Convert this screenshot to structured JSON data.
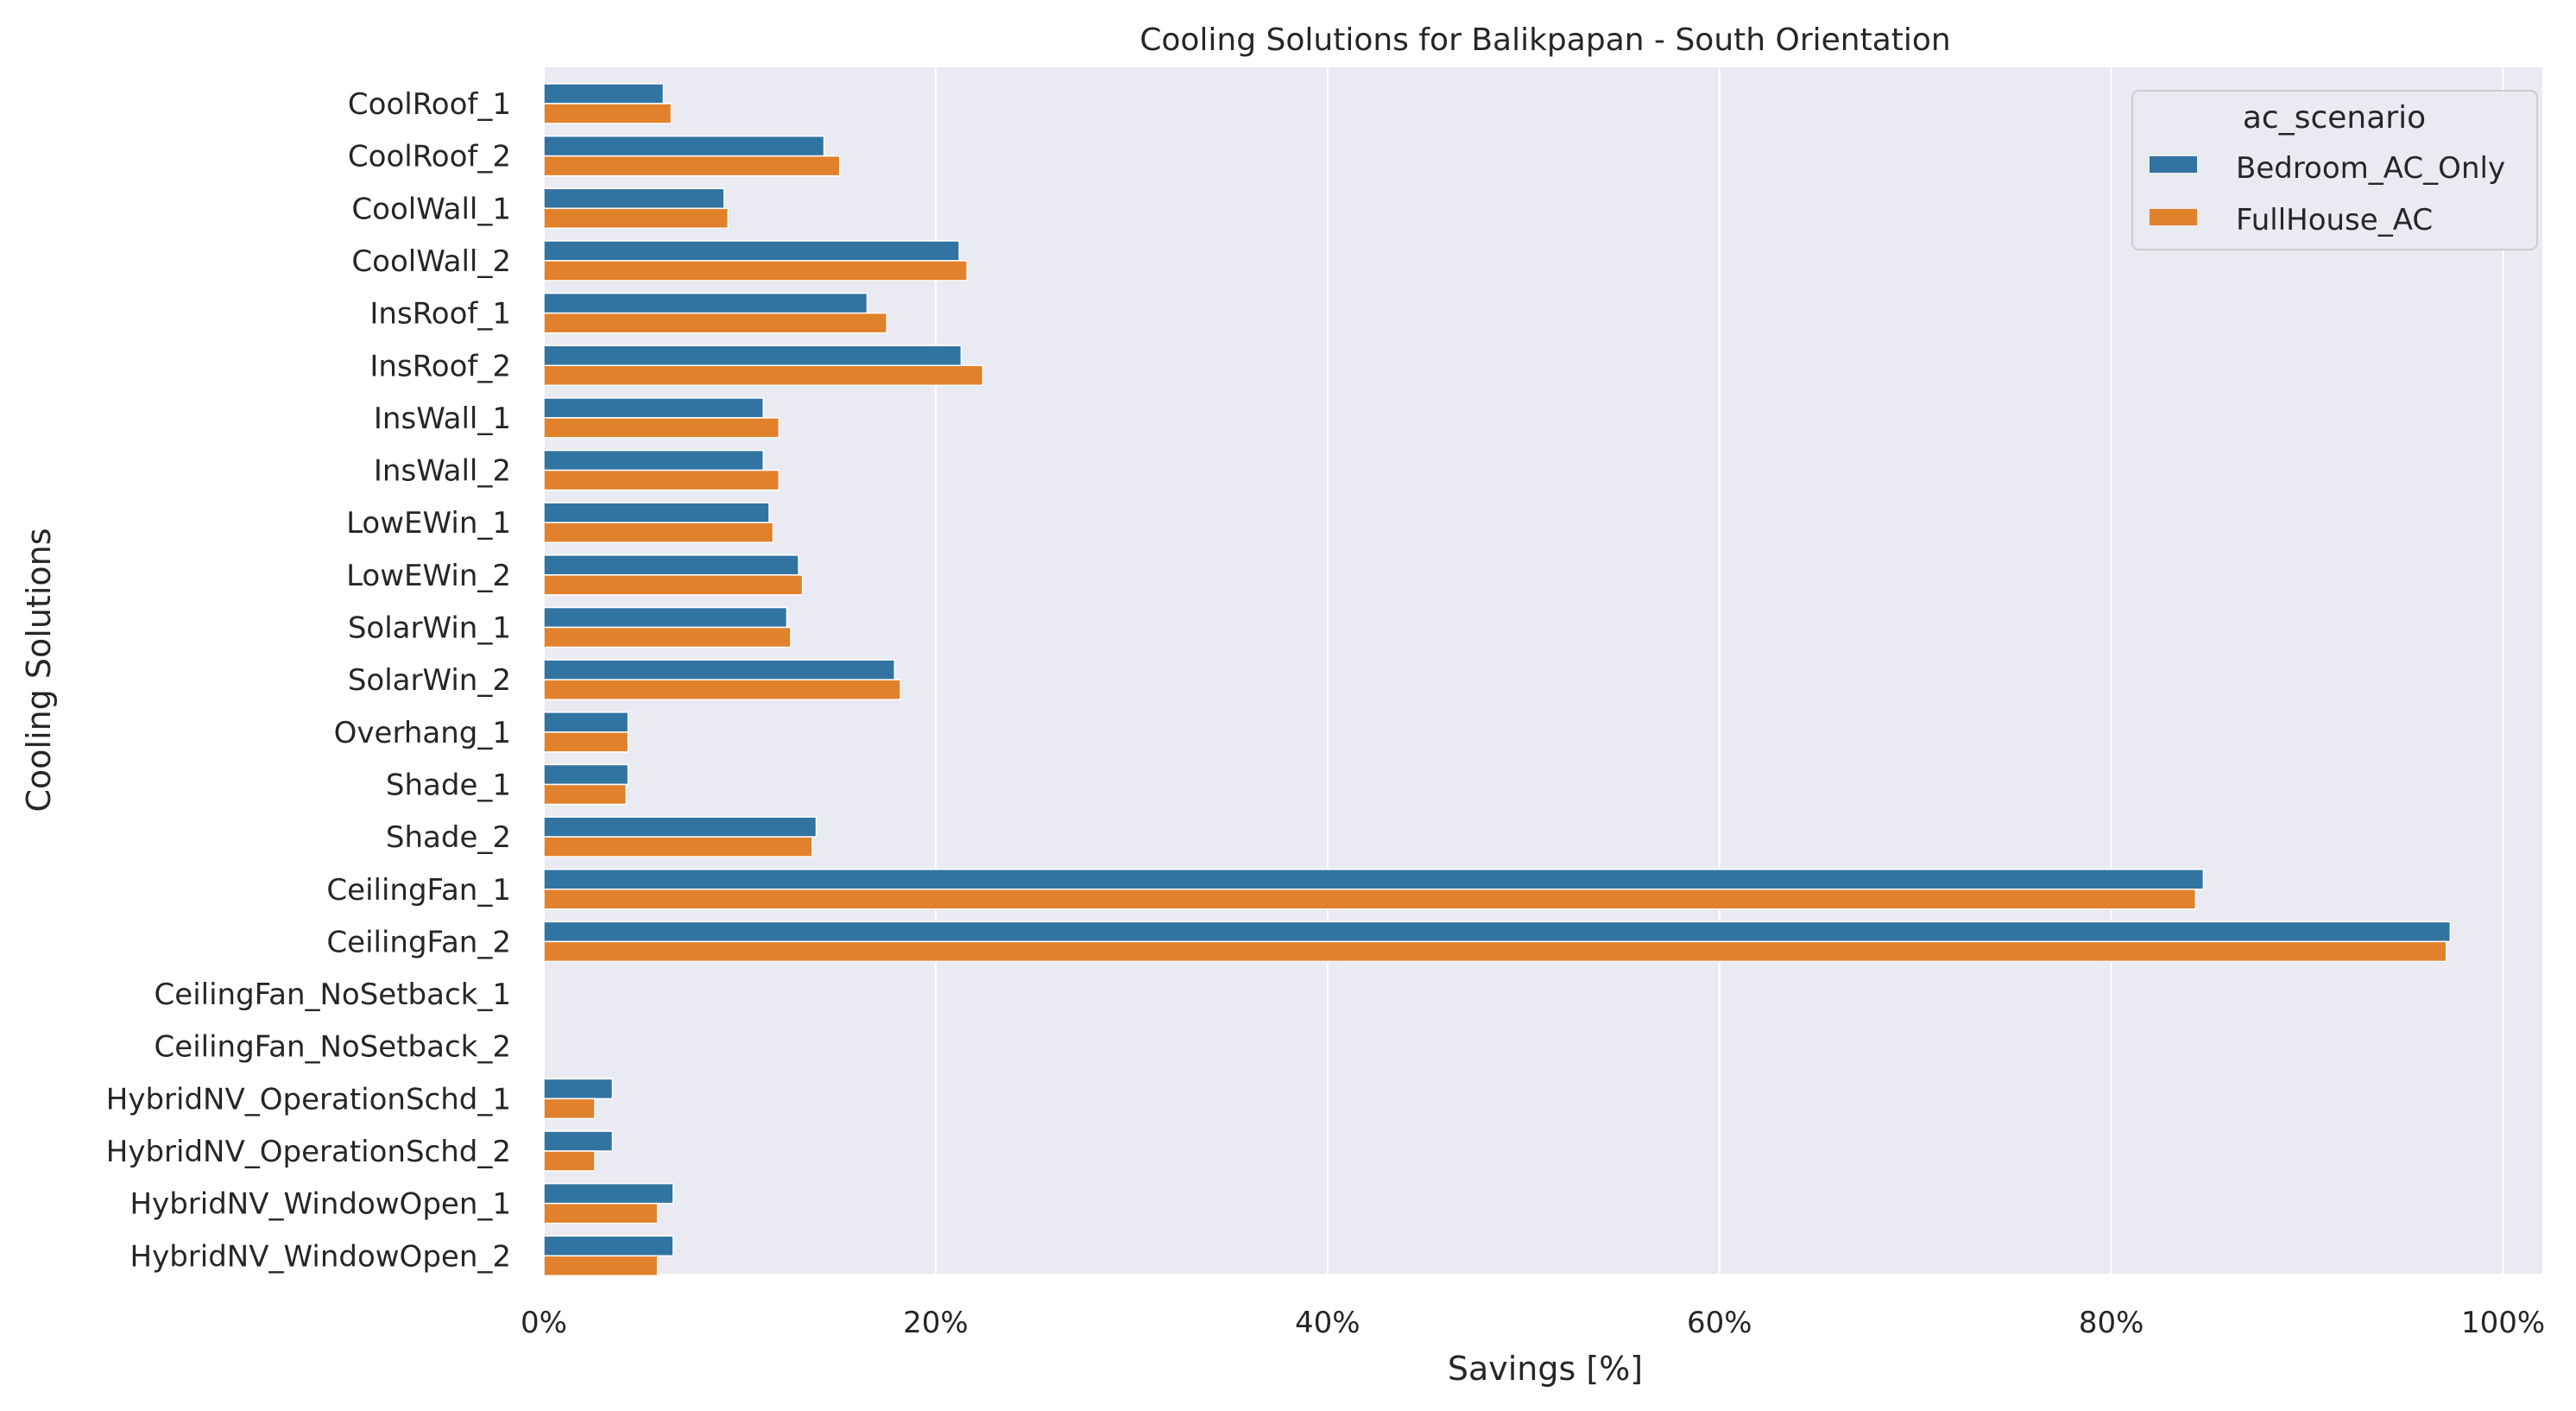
{
  "chart_data": {
    "type": "bar",
    "orientation": "horizontal",
    "title": "Cooling Solutions for Balikpapan - South Orientation",
    "xlabel": "Savings [%]",
    "ylabel": "Cooling Solutions",
    "xlim": [
      0,
      1.02
    ],
    "x_ticks": [
      0,
      0.2,
      0.4,
      0.6,
      0.8,
      1.0
    ],
    "x_tick_labels": [
      "0%",
      "20%",
      "40%",
      "60%",
      "80%",
      "100%"
    ],
    "grid": true,
    "legend": {
      "title": "ac_scenario",
      "placement": "top-right"
    },
    "categories": [
      "CoolRoof_1",
      "CoolRoof_2",
      "CoolWall_1",
      "CoolWall_2",
      "InsRoof_1",
      "InsRoof_2",
      "InsWall_1",
      "InsWall_2",
      "LowEWin_1",
      "LowEWin_2",
      "SolarWin_1",
      "SolarWin_2",
      "Overhang_1",
      "Shade_1",
      "Shade_2",
      "CeilingFan_1",
      "CeilingFan_2",
      "CeilingFan_NoSetback_1",
      "CeilingFan_NoSetback_2",
      "HybridNV_OperationSchd_1",
      "HybridNV_OperationSchd_2",
      "HybridNV_WindowOpen_1",
      "HybridNV_WindowOpen_2"
    ],
    "series": [
      {
        "name": "Bedroom_AC_Only",
        "color": "#3274a1",
        "values": [
          0.061,
          0.143,
          0.092,
          0.212,
          0.165,
          0.213,
          0.112,
          0.112,
          0.115,
          0.13,
          0.124,
          0.179,
          0.043,
          0.043,
          0.139,
          0.847,
          0.973,
          0.0,
          0.0,
          0.035,
          0.035,
          0.066,
          0.066
        ]
      },
      {
        "name": "FullHouse_AC",
        "color": "#e1812c",
        "values": [
          0.065,
          0.151,
          0.094,
          0.216,
          0.175,
          0.224,
          0.12,
          0.12,
          0.117,
          0.132,
          0.126,
          0.182,
          0.043,
          0.042,
          0.137,
          0.843,
          0.971,
          0.0,
          0.0,
          0.026,
          0.026,
          0.058,
          0.058
        ]
      }
    ]
  },
  "colors": {
    "plot_background": "#eaeaf2",
    "grid": "#ffffff",
    "text": "#262626"
  }
}
